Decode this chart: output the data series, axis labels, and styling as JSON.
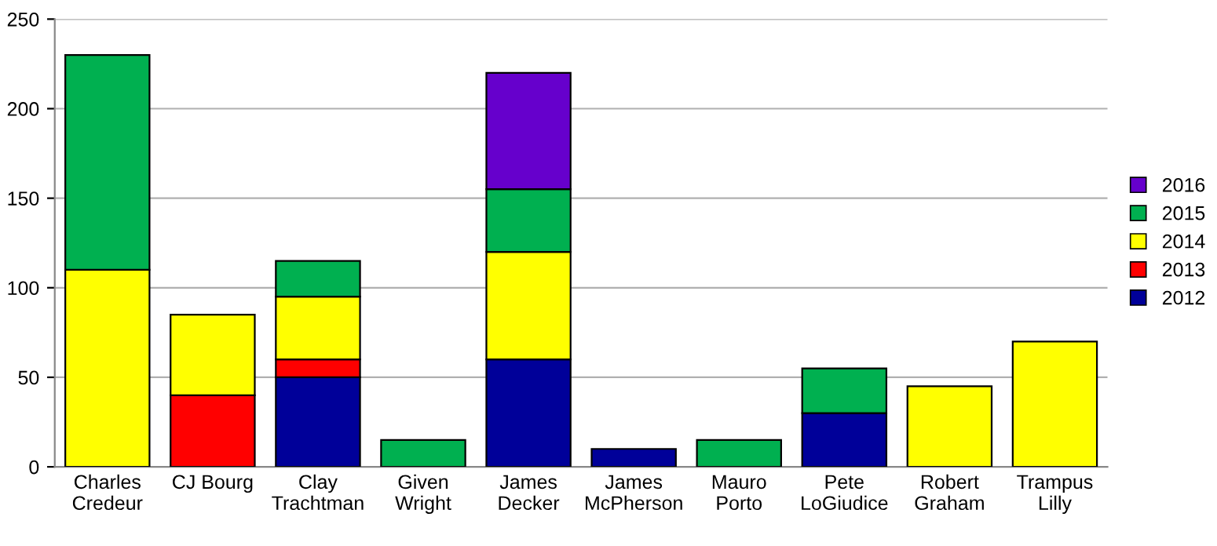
{
  "chart_data": {
    "type": "bar",
    "stacked": true,
    "categories": [
      "Charles\nCredeur",
      "CJ Bourg",
      "Clay\nTrachtman",
      "Given\nWright",
      "James\nDecker",
      "James\nMcPherson",
      "Mauro\nPorto",
      "Pete\nLoGiudice",
      "Robert\nGraham",
      "Trampus\nLilly"
    ],
    "series": [
      {
        "name": "2012",
        "color": "#000099",
        "values": [
          null,
          null,
          50,
          null,
          60,
          10,
          null,
          30,
          null,
          null
        ]
      },
      {
        "name": "2013",
        "color": "#ff0000",
        "values": [
          null,
          40,
          10,
          null,
          null,
          null,
          null,
          null,
          null,
          null
        ]
      },
      {
        "name": "2014",
        "color": "#ffff00",
        "values": [
          110,
          45,
          35,
          null,
          60,
          null,
          null,
          null,
          45,
          70
        ]
      },
      {
        "name": "2015",
        "color": "#00b050",
        "values": [
          120,
          null,
          20,
          15,
          35,
          null,
          15,
          25,
          null,
          null
        ]
      },
      {
        "name": "2016",
        "color": "#6600cc",
        "values": [
          null,
          null,
          null,
          null,
          65,
          null,
          null,
          null,
          null,
          null
        ]
      }
    ],
    "ylim": [
      0,
      250
    ],
    "yticks": [
      0,
      50,
      100,
      150,
      200,
      250
    ],
    "grid": "y",
    "legend": "right"
  }
}
